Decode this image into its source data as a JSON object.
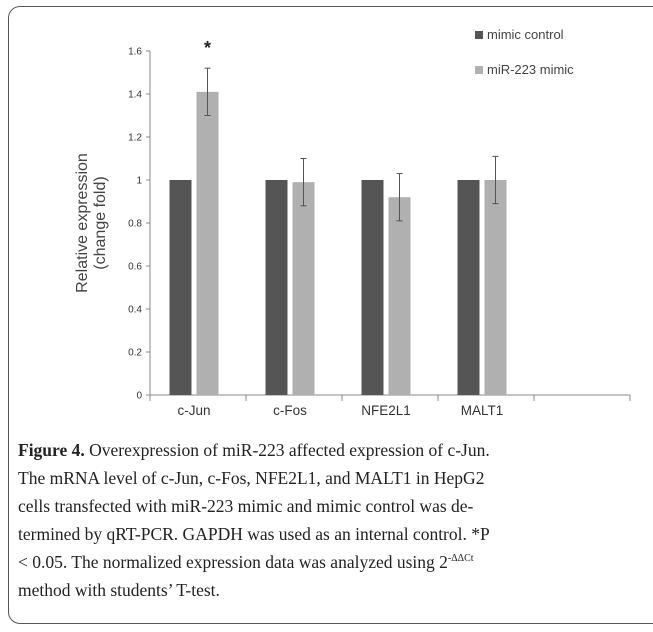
{
  "chart_data": {
    "type": "bar",
    "categories": [
      "c-Jun",
      "c-Fos",
      "NFE2L1",
      "MALT1"
    ],
    "series": [
      {
        "name": "mimic control",
        "color": "#555555",
        "values": [
          1.0,
          1.0,
          1.0,
          1.0
        ],
        "errors": [
          0,
          0,
          0,
          0
        ]
      },
      {
        "name": "miR-223 mimic",
        "color": "#b0b0b0",
        "values": [
          1.41,
          0.99,
          0.92,
          1.0
        ],
        "errors": [
          0.11,
          0.11,
          0.11,
          0.11
        ]
      }
    ],
    "ylabel_line1": "Relative expression",
    "ylabel_line2": "(change fold)",
    "ylim": [
      0,
      1.6
    ],
    "yticks": [
      "0",
      "0.2",
      "0.4",
      "0.6",
      "0.8",
      "1",
      "1.2",
      "1.4",
      "1.6"
    ],
    "significance": [
      {
        "category": "c-Jun",
        "label": "*"
      }
    ],
    "legend_position": "top-right",
    "grid": false
  },
  "caption": {
    "label": "Figure 4.",
    "line1_rest": " Overexpression of miR-223 affected expression of c-Jun.",
    "line2": "The mRNA level of c-Jun, c-Fos, NFE2L1, and MALT1 in HepG2",
    "line3": "cells transfected with miR-223 mimic and mimic control was de-",
    "line4": "termined by qRT-PCR. GAPDH was used as an internal control. *P",
    "line5_pre": "< 0.05. The normalized expression data was analyzed using 2",
    "line5_sup": "-ΔΔCt",
    "line6": "method with students’ T-test."
  }
}
